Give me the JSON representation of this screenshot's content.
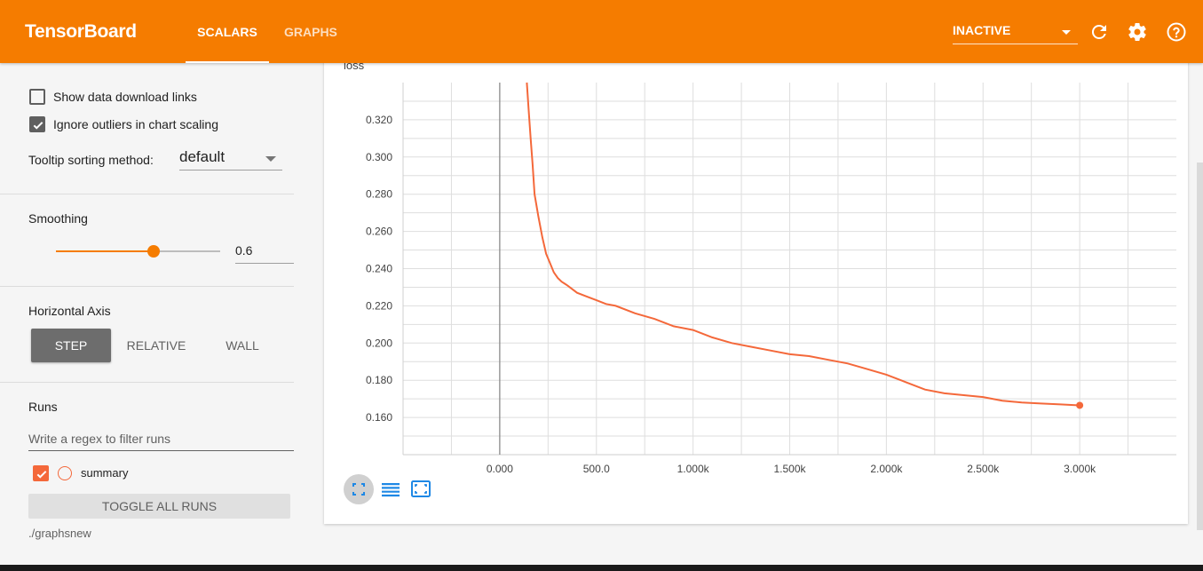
{
  "header": {
    "title": "TensorBoard",
    "tabs": [
      {
        "label": "SCALARS",
        "active": true
      },
      {
        "label": "GRAPHS",
        "active": false
      }
    ],
    "dashboard_select": "INACTIVE",
    "icons": [
      "refresh-icon",
      "settings-gear-icon",
      "help-icon"
    ]
  },
  "sidebar": {
    "show_download_links": {
      "label": "Show data download links",
      "checked": false
    },
    "ignore_outliers": {
      "label": "Ignore outliers in chart scaling",
      "checked": true
    },
    "tooltip_sorting": {
      "label": "Tooltip sorting method:",
      "value": "default"
    },
    "smoothing": {
      "title": "Smoothing",
      "value": "0.6",
      "slider_fraction": 0.6
    },
    "horizontal_axis": {
      "title": "Horizontal Axis",
      "options": [
        "STEP",
        "RELATIVE",
        "WALL"
      ],
      "selected": "STEP"
    },
    "runs": {
      "title": "Runs",
      "filter_placeholder": "Write a regex to filter runs",
      "items": [
        {
          "name": "summary",
          "checked": true,
          "color": "#f4683a"
        }
      ],
      "toggle_label": "TOGGLE ALL RUNS",
      "logdir": "./graphsnew"
    }
  },
  "colors": {
    "accent": "#f57c00",
    "series": "#f4683a"
  },
  "chart_data": {
    "type": "line",
    "title": "loss",
    "xlabel": "",
    "ylabel": "",
    "xlim": [
      -500,
      3500
    ],
    "ylim": [
      0.14,
      0.34
    ],
    "x_ticks": [
      0,
      500,
      1000,
      1500,
      2000,
      2500,
      3000
    ],
    "x_tick_labels": [
      "0.000",
      "500.0",
      "1.000k",
      "1.500k",
      "2.000k",
      "2.500k",
      "3.000k"
    ],
    "y_ticks": [
      0.16,
      0.18,
      0.2,
      0.22,
      0.24,
      0.26,
      0.28,
      0.3,
      0.32
    ],
    "y_tick_labels": [
      "0.160",
      "0.180",
      "0.200",
      "0.220",
      "0.240",
      "0.260",
      "0.280",
      "0.300",
      "0.320"
    ],
    "grid": true,
    "series": [
      {
        "name": "summary",
        "x": [
          140,
          150,
          160,
          170,
          180,
          200,
          220,
          240,
          260,
          280,
          300,
          320,
          350,
          400,
          450,
          500,
          550,
          600,
          700,
          800,
          900,
          1000,
          1100,
          1200,
          1300,
          1400,
          1500,
          1600,
          1700,
          1800,
          1900,
          2000,
          2100,
          2200,
          2300,
          2400,
          2500,
          2600,
          2700,
          2800,
          2900,
          3000
        ],
        "y": [
          0.34,
          0.325,
          0.31,
          0.296,
          0.28,
          0.268,
          0.257,
          0.248,
          0.243,
          0.238,
          0.235,
          0.233,
          0.231,
          0.227,
          0.225,
          0.223,
          0.221,
          0.22,
          0.216,
          0.213,
          0.209,
          0.207,
          0.203,
          0.2,
          0.198,
          0.196,
          0.194,
          0.193,
          0.191,
          0.189,
          0.186,
          0.183,
          0.179,
          0.175,
          0.173,
          0.172,
          0.171,
          0.169,
          0.168,
          0.1675,
          0.167,
          0.1665
        ]
      }
    ]
  }
}
